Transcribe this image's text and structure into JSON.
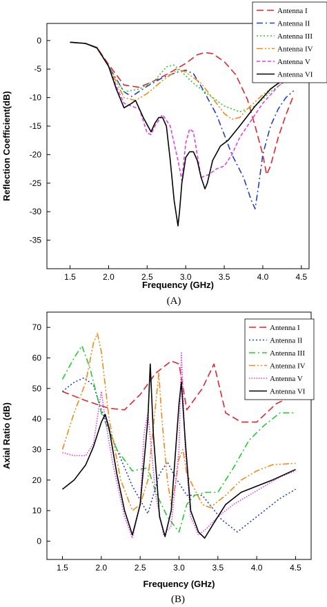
{
  "chart_data": [
    {
      "type": "line",
      "panel_label": "(A)",
      "xlabel": "Frequency (GHz)",
      "ylabel": "Reflection Coefficient(dB)",
      "xlim": [
        1.2,
        4.6
      ],
      "ylim": [
        -40,
        3
      ],
      "xticks": [
        1.5,
        2.0,
        2.5,
        3.0,
        3.5,
        4.0,
        4.5
      ],
      "yticks": [
        0,
        -5,
        -10,
        -15,
        -20,
        -25,
        -30,
        -35
      ],
      "xtick_labels": [
        "1.5",
        "2.0",
        "2.5",
        "3.0",
        "3.5",
        "4.0",
        "4.5"
      ],
      "ytick_labels": [
        "0",
        "-5",
        "-10",
        "-15",
        "-20",
        "-25",
        "-30",
        "-35"
      ],
      "legend_position": "top-right-outside",
      "series": [
        {
          "name": "Antenna I",
          "color": "#e8202a",
          "dash": "dash",
          "x": [
            1.5,
            1.7,
            1.85,
            2.0,
            2.2,
            2.4,
            2.6,
            2.8,
            3.0,
            3.15,
            3.25,
            3.35,
            3.5,
            3.65,
            3.8,
            3.9,
            4.0,
            4.05,
            4.1,
            4.2,
            4.3,
            4.4
          ],
          "y": [
            -0.3,
            -0.5,
            -1.2,
            -4.2,
            -7.8,
            -8.2,
            -7,
            -5.6,
            -4,
            -2.5,
            -2.1,
            -2.3,
            -3.7,
            -6,
            -10.3,
            -15,
            -20,
            -23.5,
            -22,
            -17,
            -13,
            -9.6
          ]
        },
        {
          "name": "Antenna II",
          "color": "#1f3fbf",
          "dash": "dashdot",
          "x": [
            1.5,
            1.7,
            1.85,
            2.0,
            2.2,
            2.3,
            2.5,
            2.7,
            2.9,
            3.0,
            3.1,
            3.2,
            3.4,
            3.6,
            3.75,
            3.85,
            3.9,
            3.95,
            4.0,
            4.1,
            4.2,
            4.3,
            4.4
          ],
          "y": [
            -0.3,
            -0.5,
            -1.3,
            -4.5,
            -9,
            -9.8,
            -8,
            -6.5,
            -5.5,
            -5.2,
            -5.8,
            -8,
            -13,
            -20,
            -24,
            -28,
            -29.5,
            -25,
            -20,
            -15,
            -12,
            -10,
            -8.8
          ]
        },
        {
          "name": "Antenna III",
          "color": "#22c92e",
          "dash": "dot",
          "x": [
            1.5,
            1.7,
            1.85,
            2.0,
            2.2,
            2.4,
            2.6,
            2.75,
            2.85,
            2.95,
            3.1,
            3.3,
            3.5,
            3.7,
            3.9,
            4.1,
            4.3,
            4.4
          ],
          "y": [
            -0.3,
            -0.5,
            -1.2,
            -4.5,
            -9,
            -8.5,
            -7,
            -4.6,
            -4.3,
            -5.5,
            -7.5,
            -9.5,
            -11.5,
            -12.5,
            -11.5,
            -9,
            -7,
            -6
          ]
        },
        {
          "name": "Antenna IV",
          "color": "#f08a13",
          "dash": "dashdotdot",
          "x": [
            1.5,
            1.7,
            1.85,
            2.0,
            2.2,
            2.35,
            2.5,
            2.7,
            2.9,
            3.0,
            3.2,
            3.4,
            3.5,
            3.6,
            3.7,
            3.8,
            4.0,
            4.2,
            4.4
          ],
          "y": [
            -0.3,
            -0.5,
            -1.2,
            -4.5,
            -10,
            -10.5,
            -9.3,
            -7,
            -5.1,
            -5.5,
            -7.5,
            -11,
            -12.8,
            -13.8,
            -13.5,
            -12,
            -9.5,
            -7.5,
            -6
          ]
        },
        {
          "name": "Antenna V",
          "color": "#e23ce6",
          "dash": "shortdash",
          "x": [
            1.5,
            1.7,
            1.85,
            2.0,
            2.1,
            2.2,
            2.3,
            2.4,
            2.5,
            2.55,
            2.6,
            2.7,
            2.8,
            2.9,
            2.95,
            3.0,
            3.05,
            3.1,
            3.15,
            3.2,
            3.3,
            3.4,
            3.5,
            3.6,
            3.7,
            3.8,
            4.0,
            4.2,
            4.3,
            4.4
          ],
          "y": [
            -0.3,
            -0.5,
            -1.3,
            -4.5,
            -8,
            -11,
            -11.5,
            -12,
            -16.2,
            -16.5,
            -15,
            -13,
            -15,
            -21,
            -24.5,
            -18,
            -15.5,
            -16,
            -20,
            -24,
            -23.5,
            -22.5,
            -22,
            -20,
            -17,
            -15,
            -11,
            -8,
            -7,
            -6
          ]
        },
        {
          "name": "Antenna VI",
          "color": "#000000",
          "dash": "solid",
          "x": [
            1.5,
            1.7,
            1.85,
            2.0,
            2.1,
            2.2,
            2.3,
            2.35,
            2.45,
            2.55,
            2.6,
            2.65,
            2.7,
            2.75,
            2.8,
            2.85,
            2.9,
            2.92,
            2.95,
            3.0,
            3.05,
            3.1,
            3.15,
            3.2,
            3.25,
            3.28,
            3.35,
            3.45,
            3.55,
            3.7,
            3.9,
            4.1,
            4.3,
            4.4
          ],
          "y": [
            -0.3,
            -0.5,
            -1.3,
            -4.5,
            -8.5,
            -11.8,
            -11,
            -10.5,
            -13.5,
            -16,
            -14.5,
            -13.5,
            -13.5,
            -15,
            -21,
            -28,
            -32.5,
            -30,
            -25,
            -20.5,
            -19.5,
            -19.5,
            -21,
            -24,
            -26,
            -25,
            -21,
            -18.5,
            -17.5,
            -15,
            -11.5,
            -8.5,
            -6.5,
            -5.5
          ]
        }
      ]
    },
    {
      "type": "line",
      "panel_label": "(B)",
      "xlabel": "Frequency (GHz)",
      "ylabel": "Axial Ratio (dB)",
      "xlim": [
        1.3,
        4.7
      ],
      "ylim": [
        -6,
        75
      ],
      "xticks": [
        1.5,
        2.0,
        2.5,
        3.0,
        3.5,
        4.0,
        4.5
      ],
      "yticks": [
        0,
        10,
        20,
        30,
        40,
        50,
        60,
        70
      ],
      "xtick_labels": [
        "1.5",
        "2.0",
        "2.5",
        "3.0",
        "3.5",
        "4.0",
        "4.5"
      ],
      "ytick_labels": [
        "0",
        "10",
        "20",
        "30",
        "40",
        "50",
        "60",
        "70"
      ],
      "legend_position": "top-right",
      "series": [
        {
          "name": "Antenna I",
          "color": "#e8202a",
          "dash": "dash",
          "x": [
            1.5,
            1.8,
            2.1,
            2.3,
            2.5,
            2.7,
            2.9,
            3.0,
            3.1,
            3.3,
            3.45,
            3.6,
            3.8,
            4.0,
            4.25,
            4.5
          ],
          "y": [
            49,
            46,
            43.5,
            43,
            48,
            55,
            59,
            58,
            43,
            50,
            58,
            42,
            39,
            39,
            45,
            48
          ]
        },
        {
          "name": "Antenna II",
          "color": "#1f3fbf",
          "dash": "dot",
          "x": [
            1.5,
            1.65,
            1.78,
            1.9,
            2.0,
            2.2,
            2.4,
            2.6,
            2.75,
            2.85,
            2.95,
            3.1,
            3.3,
            3.55,
            3.75,
            3.9,
            4.1,
            4.3,
            4.5
          ],
          "y": [
            49,
            52,
            53.5,
            51,
            43,
            30,
            18,
            9,
            22,
            26,
            21,
            15,
            15,
            7,
            3,
            6,
            10,
            14,
            17
          ]
        },
        {
          "name": "Antenna III",
          "color": "#22c92e",
          "dash": "dashdot",
          "x": [
            1.5,
            1.65,
            1.75,
            1.85,
            2.0,
            2.2,
            2.4,
            2.6,
            2.7,
            2.85,
            3.0,
            3.1,
            3.2,
            3.35,
            3.5,
            3.7,
            3.9,
            4.1,
            4.3,
            4.5
          ],
          "y": [
            53,
            60,
            64,
            57,
            42,
            30,
            23,
            24,
            16,
            8,
            3,
            12,
            15,
            16,
            16,
            24,
            33,
            38,
            42,
            42
          ]
        },
        {
          "name": "Antenna IV",
          "color": "#f08a13",
          "dash": "dashdotdot",
          "x": [
            1.5,
            1.65,
            1.8,
            1.9,
            1.95,
            2.0,
            2.1,
            2.25,
            2.4,
            2.5,
            2.6,
            2.7,
            2.74,
            2.78,
            2.85,
            2.9,
            2.95,
            3.0,
            3.05,
            3.1,
            3.3,
            3.4,
            3.6,
            3.8,
            4.0,
            4.2,
            4.5
          ],
          "y": [
            30,
            42,
            52,
            65,
            68,
            62,
            40,
            20,
            10,
            12,
            20,
            45,
            55,
            40,
            20,
            12,
            18,
            27,
            30,
            22,
            12,
            11,
            15,
            20,
            23,
            25,
            25.5
          ]
        },
        {
          "name": "Antenna V",
          "color": "#e23ce6",
          "dash": "shortdot",
          "x": [
            1.5,
            1.65,
            1.8,
            1.9,
            2.0,
            2.05,
            2.15,
            2.3,
            2.4,
            2.5,
            2.55,
            2.6,
            2.7,
            2.8,
            2.9,
            3.0,
            3.03,
            3.08,
            3.15,
            3.25,
            3.35,
            3.5,
            3.7,
            3.9,
            4.1,
            4.3,
            4.5
          ],
          "y": [
            29,
            28,
            28,
            32,
            49,
            40,
            25,
            8,
            1,
            12,
            35,
            42,
            15,
            2,
            5,
            30,
            62,
            30,
            8,
            2,
            4,
            8,
            12,
            15,
            18,
            21,
            23
          ]
        },
        {
          "name": "Antenna VI",
          "color": "#000000",
          "dash": "solid",
          "x": [
            1.5,
            1.65,
            1.8,
            1.9,
            2.0,
            2.05,
            2.1,
            2.2,
            2.3,
            2.4,
            2.5,
            2.6,
            2.63,
            2.67,
            2.75,
            2.82,
            2.9,
            3.0,
            3.03,
            3.08,
            3.15,
            3.25,
            3.33,
            3.45,
            3.6,
            3.8,
            4.0,
            4.2,
            4.5
          ],
          "y": [
            17,
            20,
            25,
            31,
            39,
            41.5,
            37,
            22,
            10,
            2,
            12,
            40,
            58,
            35,
            8,
            1.5,
            10,
            45,
            52,
            33,
            10,
            3,
            1,
            6,
            12,
            16,
            18,
            20,
            23.5
          ]
        }
      ]
    }
  ]
}
